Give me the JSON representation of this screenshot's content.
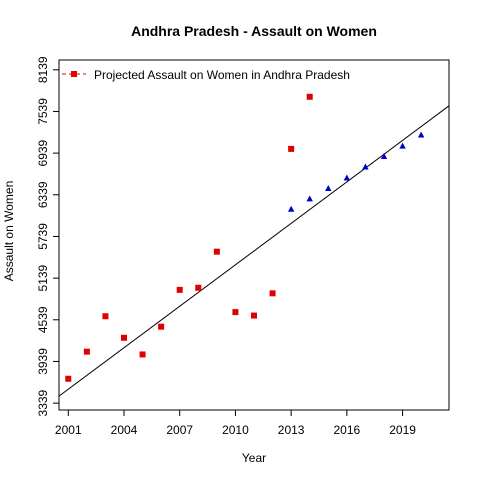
{
  "chart_data": {
    "type": "scatter",
    "title": "Andhra Pradesh  -  Assault on Women",
    "xlabel": "Year",
    "ylabel": "Assault on Women",
    "xlim": [
      2000.5,
      2021.5
    ],
    "ylim": [
      3240,
      8280
    ],
    "x_ticks": [
      "2001",
      "2004",
      "2007",
      "2010",
      "2013",
      "2016",
      "2019"
    ],
    "x_tick_values": [
      2001,
      2004,
      2007,
      2010,
      2013,
      2016,
      2019
    ],
    "y_ticks": [
      "3339",
      "3939",
      "4539",
      "5139",
      "5739",
      "6339",
      "6939",
      "7539",
      "8139"
    ],
    "y_tick_values": [
      3339,
      3939,
      4539,
      5139,
      5739,
      6339,
      6939,
      7539,
      8139
    ],
    "legend": {
      "position": "top-left",
      "entries": [
        "Projected  Assault on Women  in  Andhra Pradesh"
      ]
    },
    "series": [
      {
        "name": "Projected  Assault on Women  in  Andhra Pradesh",
        "marker": "square",
        "color": "#e00000",
        "x": [
          2001,
          2002,
          2003,
          2004,
          2005,
          2006,
          2007,
          2008,
          2009,
          2010,
          2011,
          2012,
          2013,
          2014
        ],
        "y": [
          3690,
          4080,
          4590,
          4280,
          4040,
          4440,
          4970,
          5000,
          5520,
          4650,
          4600,
          4920,
          7000,
          7750
        ]
      },
      {
        "marker": "triangle",
        "color": "#0000c8",
        "x": [
          2013,
          2014,
          2015,
          2016,
          2017,
          2018,
          2019,
          2020
        ],
        "y": [
          6130,
          6280,
          6430,
          6580,
          6740,
          6890,
          7040,
          7200
        ]
      }
    ],
    "trend_line": {
      "color": "#000000",
      "x": [
        2000.5,
        2021.5
      ],
      "y": [
        3440,
        7620
      ]
    },
    "grid": false
  }
}
